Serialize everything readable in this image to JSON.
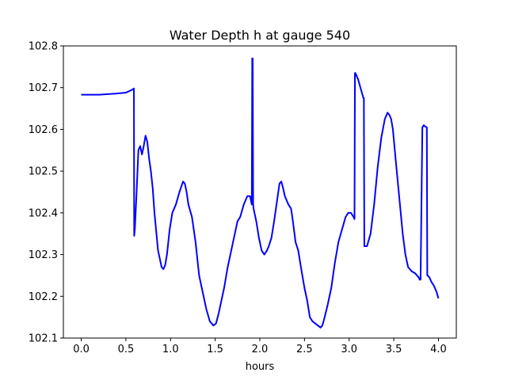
{
  "chart_data": {
    "type": "line",
    "title": "Water Depth h at gauge 540",
    "xlabel": "hours",
    "ylabel": "",
    "xlim": [
      -0.2,
      4.2
    ],
    "ylim": [
      102.1,
      102.8
    ],
    "xticks": [
      "0.0",
      "0.5",
      "1.0",
      "1.5",
      "2.0",
      "2.5",
      "3.0",
      "3.5",
      "4.0"
    ],
    "yticks": [
      "102.1",
      "102.2",
      "102.3",
      "102.4",
      "102.5",
      "102.6",
      "102.7",
      "102.8"
    ],
    "grid": false,
    "line_color": "#0000ff",
    "series": [
      {
        "x": [
          0.0,
          0.2,
          0.4,
          0.5,
          0.57,
          0.59,
          0.593,
          0.6,
          0.62,
          0.64,
          0.66,
          0.68,
          0.7,
          0.72,
          0.74,
          0.76,
          0.78,
          0.8,
          0.82,
          0.86,
          0.9,
          0.92,
          0.94,
          0.96,
          0.99,
          1.02,
          1.06,
          1.1,
          1.14,
          1.16,
          1.18,
          1.2,
          1.24,
          1.28,
          1.32,
          1.36,
          1.4,
          1.44,
          1.48,
          1.51,
          1.54,
          1.56,
          1.6,
          1.64,
          1.68,
          1.72,
          1.75,
          1.78,
          1.82,
          1.86,
          1.89,
          1.91,
          1.915,
          1.92,
          1.925,
          1.93,
          1.96,
          1.99,
          2.02,
          2.05,
          2.08,
          2.1,
          2.13,
          2.16,
          2.2,
          2.22,
          2.24,
          2.26,
          2.28,
          2.32,
          2.35,
          2.37,
          2.4,
          2.43,
          2.46,
          2.5,
          2.53,
          2.56,
          2.59,
          2.62,
          2.65,
          2.68,
          2.7,
          2.72,
          2.76,
          2.8,
          2.84,
          2.88,
          2.92,
          2.94,
          2.96,
          2.99,
          3.02,
          3.05,
          3.06,
          3.065,
          3.07,
          3.1,
          3.14,
          3.16,
          3.165,
          3.17,
          3.2,
          3.24,
          3.28,
          3.32,
          3.36,
          3.4,
          3.43,
          3.45,
          3.47,
          3.49,
          3.52,
          3.56,
          3.6,
          3.63,
          3.66,
          3.7,
          3.74,
          3.78,
          3.79,
          3.8,
          3.82,
          3.83,
          3.835,
          3.85,
          3.87,
          3.875,
          3.88,
          3.9,
          3.92,
          3.95,
          3.98,
          4.0
        ],
        "y": [
          102.683,
          102.683,
          102.686,
          102.688,
          102.695,
          102.698,
          102.345,
          102.36,
          102.45,
          102.55,
          102.56,
          102.54,
          102.56,
          102.585,
          102.57,
          102.53,
          102.5,
          102.46,
          102.4,
          102.31,
          102.27,
          102.265,
          102.275,
          102.3,
          102.36,
          102.4,
          102.42,
          102.45,
          102.475,
          102.47,
          102.45,
          102.42,
          102.39,
          102.33,
          102.25,
          102.21,
          102.17,
          102.14,
          102.13,
          102.135,
          102.16,
          102.18,
          102.22,
          102.27,
          102.31,
          102.35,
          102.38,
          102.39,
          102.42,
          102.44,
          102.44,
          102.42,
          102.77,
          102.77,
          102.42,
          102.41,
          102.38,
          102.34,
          102.31,
          102.3,
          102.31,
          102.32,
          102.34,
          102.38,
          102.44,
          102.47,
          102.475,
          102.46,
          102.44,
          102.42,
          102.41,
          102.38,
          102.33,
          102.31,
          102.27,
          102.22,
          102.19,
          102.15,
          102.14,
          102.135,
          102.13,
          102.125,
          102.13,
          102.145,
          102.18,
          102.22,
          102.28,
          102.33,
          102.36,
          102.375,
          102.39,
          102.4,
          102.4,
          102.39,
          102.385,
          102.735,
          102.735,
          102.72,
          102.69,
          102.675,
          102.675,
          102.32,
          102.32,
          102.35,
          102.42,
          102.51,
          102.58,
          102.625,
          102.64,
          102.635,
          102.625,
          102.6,
          102.53,
          102.44,
          102.35,
          102.3,
          102.27,
          102.26,
          102.255,
          102.245,
          102.24,
          102.24,
          102.605,
          102.608,
          102.61,
          102.607,
          102.605,
          102.25,
          102.25,
          102.245,
          102.235,
          102.225,
          102.21,
          102.195
        ]
      }
    ]
  }
}
